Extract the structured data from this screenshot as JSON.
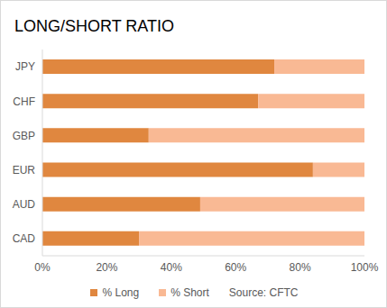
{
  "chart_data": {
    "type": "bar",
    "title": "LONG/SHORT RATIO",
    "orientation": "horizontal",
    "stacked": true,
    "categories": [
      "JPY",
      "CHF",
      "GBP",
      "EUR",
      "AUD",
      "CAD"
    ],
    "series": [
      {
        "name": "% Long",
        "color": "#e0873f",
        "values": [
          72,
          67,
          33,
          84,
          49,
          30
        ]
      },
      {
        "name": "% Short",
        "color": "#f9b994",
        "values": [
          28,
          33,
          67,
          16,
          51,
          70
        ]
      }
    ],
    "xlim": [
      0,
      100
    ],
    "xticks": [
      {
        "value": 0,
        "label": "0%"
      },
      {
        "value": 20,
        "label": "20%"
      },
      {
        "value": 40,
        "label": "40%"
      },
      {
        "value": 60,
        "label": "60%"
      },
      {
        "value": 80,
        "label": "80%"
      },
      {
        "value": 100,
        "label": "100%"
      }
    ],
    "grid": false,
    "legend": "bottom",
    "annotations": [
      "Source: CFTC"
    ]
  }
}
